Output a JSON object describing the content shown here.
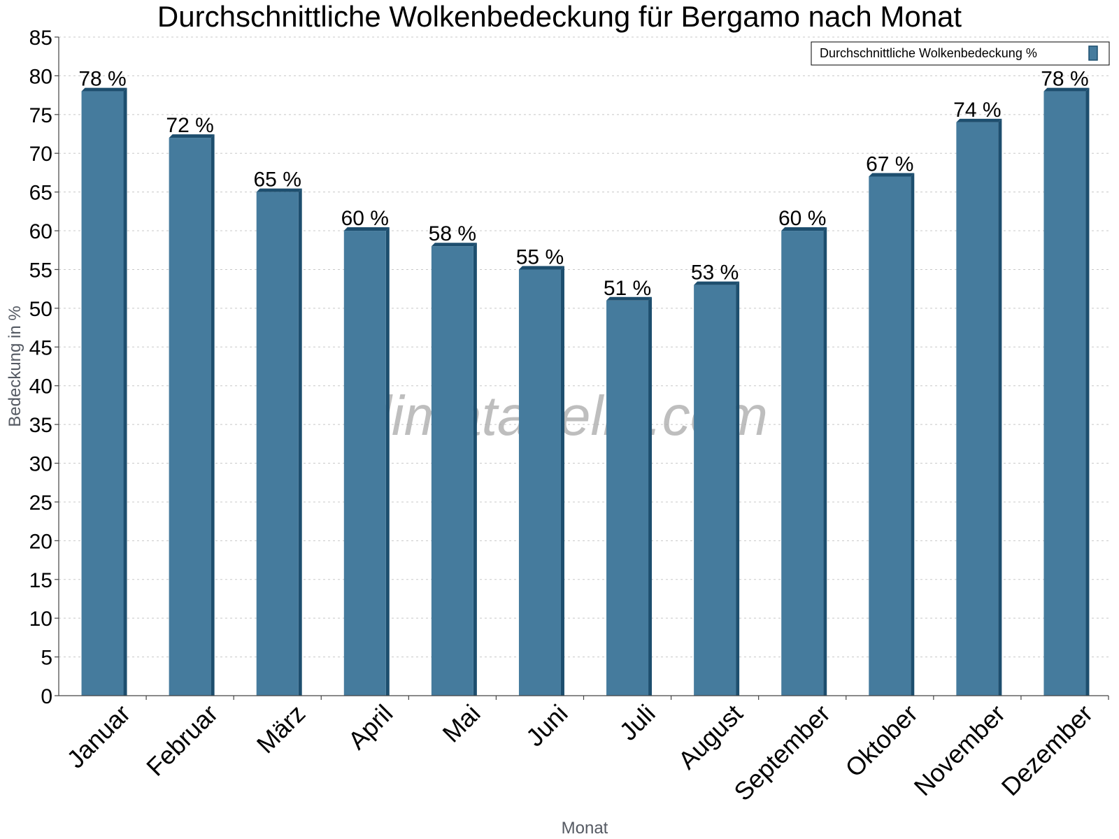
{
  "chart_data": {
    "type": "bar",
    "title": "Durchschnittliche Wolkenbedeckung für Bergamo nach Monat",
    "xlabel": "Monat",
    "ylabel": "Bedeckung in %",
    "ylim": [
      0,
      85
    ],
    "ytick_step": 5,
    "grid": true,
    "legend_position": "top-right",
    "categories": [
      "Januar",
      "Februar",
      "März",
      "April",
      "Mai",
      "Juni",
      "Juli",
      "August",
      "September",
      "Oktober",
      "November",
      "Dezember"
    ],
    "series": [
      {
        "name": "Durchschnittliche Wolkenbedeckung %",
        "values": [
          78,
          72,
          65,
          60,
          58,
          55,
          51,
          53,
          60,
          67,
          74,
          78
        ],
        "value_labels": [
          "78 %",
          "72 %",
          "65 %",
          "60 %",
          "58 %",
          "55 %",
          "51 %",
          "53 %",
          "60 %",
          "67 %",
          "74 %",
          "78 %"
        ]
      }
    ],
    "watermark": "klimatabelle.com"
  },
  "colors": {
    "bar_face": "#457b9d",
    "bar_dark": "#1d4e6e",
    "grid": "#c8c8c8",
    "axis": "#444444"
  }
}
